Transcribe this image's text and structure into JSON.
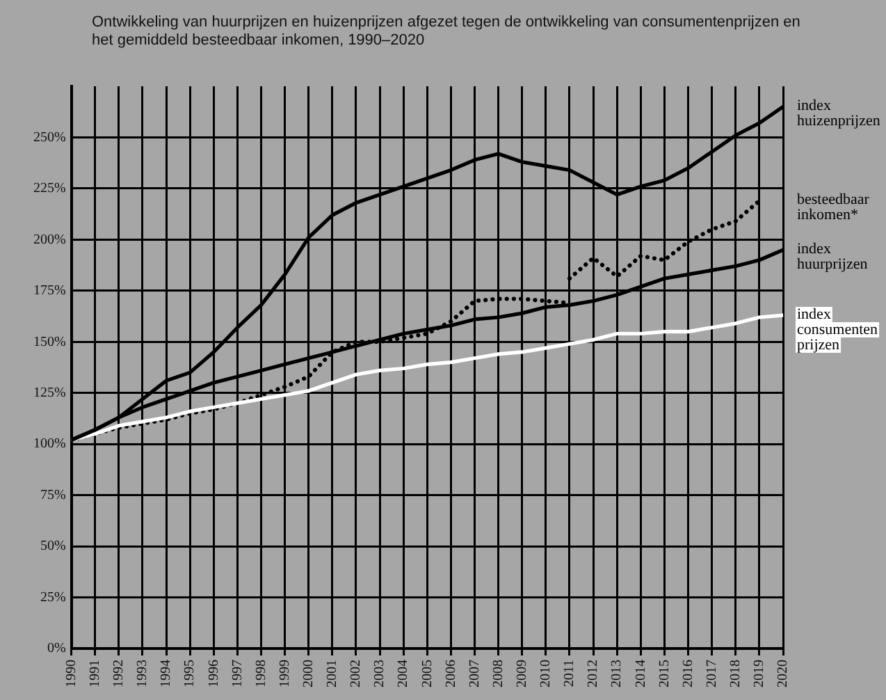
{
  "chart_data": {
    "type": "line",
    "title": "Ontwikkeling van huurprijzen en huizenprijzen afgezet tegen de ontwikkeling van consumentenprijzen en het gemiddeld besteedbaar inkomen, 1990–2020",
    "x": [
      1990,
      1991,
      1992,
      1993,
      1994,
      1995,
      1996,
      1997,
      1998,
      1999,
      2000,
      2001,
      2002,
      2003,
      2004,
      2005,
      2006,
      2007,
      2008,
      2009,
      2010,
      2011,
      2012,
      2013,
      2014,
      2015,
      2016,
      2017,
      2018,
      2019,
      2020
    ],
    "series": [
      {
        "name": "index huizenprijzen",
        "color": "#000000",
        "values": [
          102,
          107,
          113,
          122,
          131,
          135,
          145,
          157,
          168,
          183,
          201,
          212,
          218,
          222,
          226,
          230,
          234,
          239,
          242,
          238,
          236,
          234,
          228,
          222,
          226,
          229,
          235,
          243,
          251,
          257,
          265
        ]
      },
      {
        "name": "index huurprijzen",
        "color": "#000000",
        "values": [
          102,
          107,
          113,
          118,
          122,
          126,
          130,
          133,
          136,
          139,
          142,
          145,
          148,
          151,
          154,
          156,
          158,
          161,
          162,
          164,
          167,
          168,
          170,
          173,
          177,
          181,
          183,
          185,
          187,
          190,
          195
        ]
      },
      {
        "name": "index consumenten prijzen",
        "color": "#ffffff",
        "values": [
          102,
          105,
          109,
          111,
          113,
          116,
          118,
          120,
          122,
          124,
          126,
          130,
          134,
          136,
          137,
          139,
          140,
          142,
          144,
          145,
          147,
          149,
          151,
          154,
          154,
          155,
          155,
          157,
          159,
          162,
          163
        ]
      },
      {
        "color": "#000000",
        "line_style": "dotted",
        "values": [
          102,
          105,
          108,
          110,
          112,
          115,
          117,
          120,
          124,
          128,
          133,
          145,
          150,
          150,
          152,
          154,
          160,
          170,
          171,
          171,
          170,
          169,
          null,
          null,
          null,
          null,
          null,
          null,
          null,
          null,
          null
        ]
      },
      {
        "name": "besteedbaar inkomen*",
        "color": "#000000",
        "line_style": "dotted",
        "x": [
          2011,
          2012,
          2013,
          2014,
          2015,
          2016,
          2017,
          2018,
          2019
        ],
        "values": [
          181,
          191,
          182,
          192,
          190,
          199,
          205,
          209,
          219
        ]
      }
    ],
    "xlim": [
      1990,
      2020
    ],
    "xticks": [
      1990,
      1991,
      1992,
      1993,
      1994,
      1995,
      1996,
      1997,
      1998,
      1999,
      2000,
      2001,
      2002,
      2003,
      2004,
      2005,
      2006,
      2007,
      2008,
      2009,
      2010,
      2011,
      2012,
      2013,
      2014,
      2015,
      2016,
      2017,
      2018,
      2019,
      2020
    ],
    "ylim": [
      0,
      275
    ],
    "yticks": [
      {
        "value": 0,
        "label": "0%"
      },
      {
        "value": 25,
        "label": "25%"
      },
      {
        "value": 50,
        "label": "50%"
      },
      {
        "value": 75,
        "label": "75%"
      },
      {
        "value": 100,
        "label": "100%"
      },
      {
        "value": 125,
        "label": "125%"
      },
      {
        "value": 150,
        "label": "150%"
      },
      {
        "value": 175,
        "label": "175%"
      },
      {
        "value": 200,
        "label": "200%"
      },
      {
        "value": 225,
        "label": "225%"
      },
      {
        "value": 250,
        "label": "250%"
      }
    ],
    "grid": true,
    "legend": false,
    "marker": "none",
    "line_style": "solid"
  }
}
